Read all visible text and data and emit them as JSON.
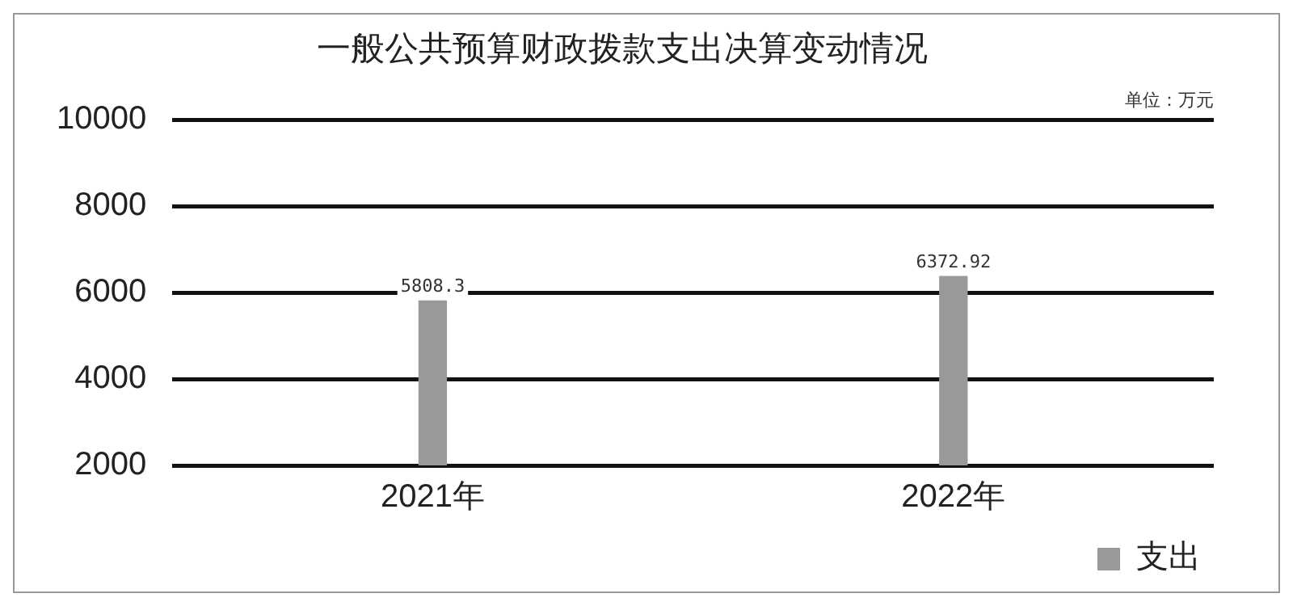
{
  "chart_data": {
    "type": "bar",
    "title": "一般公共预算财政拨款支出决算变动情况",
    "annotations": [
      "单位：万元"
    ],
    "categories": [
      "2021年",
      "2022年"
    ],
    "series": [
      {
        "name": "支出",
        "color": "#999999",
        "values": [
          5808.3,
          6372.92
        ]
      }
    ],
    "ylim": [
      2000,
      10000
    ],
    "yticks": [
      2000,
      4000,
      6000,
      8000,
      10000
    ],
    "grid": "y",
    "legend": "bottom right",
    "data_labels": true
  }
}
